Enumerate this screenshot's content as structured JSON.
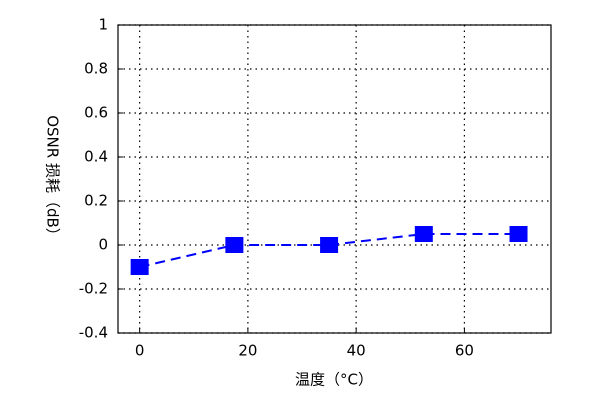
{
  "chart_data": {
    "type": "line",
    "x_label": "温度（°C）",
    "y_label": "OSNR 损耗（dB）",
    "series": [
      {
        "color": "#0000ff",
        "x": [
          0,
          17.5,
          35,
          52.5,
          70
        ],
        "values": [
          -0.1,
          0,
          0,
          0.05,
          0.05
        ]
      }
    ],
    "xlim": [
      -4,
      76
    ],
    "xticks": [
      0,
      20,
      40,
      60
    ],
    "ylim": [
      -0.4,
      1
    ],
    "yticks": [
      -0.4,
      -0.2,
      0,
      0.2,
      0.4,
      0.6,
      0.8,
      1
    ],
    "grid": true
  }
}
